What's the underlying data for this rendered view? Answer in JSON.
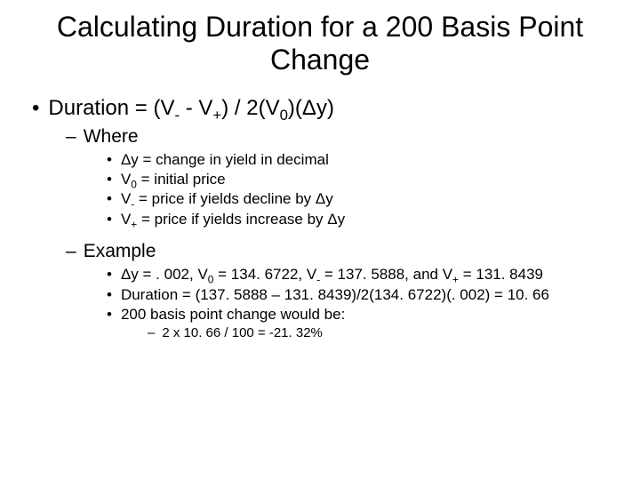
{
  "title": "Calculating Duration for a 200 Basis Point Change",
  "formula": {
    "prefix": "Duration = (V",
    "sub1": "-",
    "mid1": " - V",
    "sub2": "+",
    "mid2": ") / 2(V",
    "sub3": "0",
    "mid3": ")(Δy)"
  },
  "where_label": "Where",
  "defs": {
    "d1": "Δy = change in yield in decimal",
    "d2_pre": "V",
    "d2_sub": "0",
    "d2_post": " = initial price",
    "d3_pre": "V",
    "d3_sub": "-",
    "d3_post": "  = price if yields decline by Δy",
    "d4_pre": "V",
    "d4_sub": "+",
    "d4_post": " = price if yields increase by Δy"
  },
  "example_label": "Example",
  "ex": {
    "e1_a": "Δy = . 002, V",
    "e1_b": "0",
    "e1_c": " = 134. 6722, V",
    "e1_d": "-",
    "e1_e": "  = 137. 5888, and V",
    "e1_f": "+",
    "e1_g": " = 131. 8439",
    "e2": "Duration = (137. 5888 – 131. 8439)/2(134. 6722)(. 002) = 10. 66",
    "e3": "200 basis point change would be:",
    "e4": "2 x 10. 66 / 100 = -21. 32%"
  }
}
